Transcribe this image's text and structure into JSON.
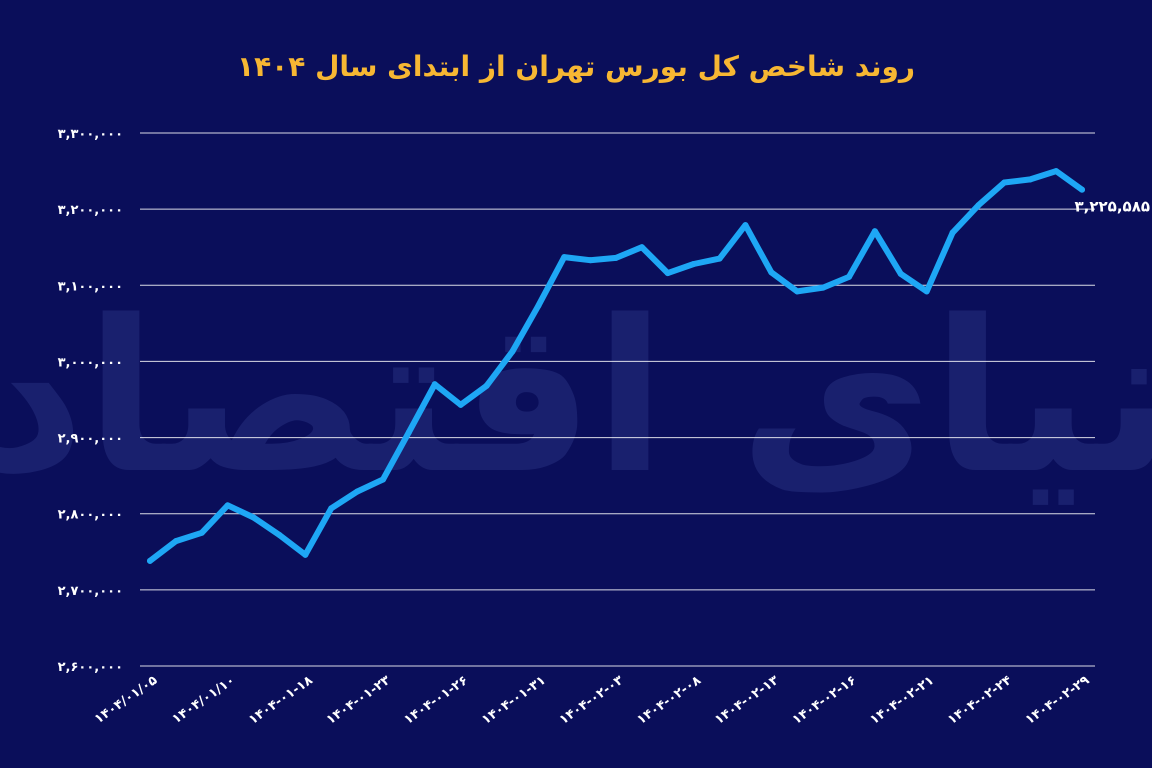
{
  "chart_data": {
    "type": "line",
    "title": "روند شاخص کل بورس تهران از ابتدای سال ۱۴۰۴",
    "xlabel": "",
    "ylabel": "",
    "ylim": [
      2600000,
      3300000
    ],
    "yticks": [
      {
        "value": 3300000,
        "label": "۳,۳۰۰,۰۰۰"
      },
      {
        "value": 3200000,
        "label": "۳,۲۰۰,۰۰۰"
      },
      {
        "value": 3100000,
        "label": "۳,۱۰۰,۰۰۰"
      },
      {
        "value": 3000000,
        "label": "۳,۰۰۰,۰۰۰"
      },
      {
        "value": 2900000,
        "label": "۲,۹۰۰,۰۰۰"
      },
      {
        "value": 2800000,
        "label": "۲,۸۰۰,۰۰۰"
      },
      {
        "value": 2700000,
        "label": "۲,۷۰۰,۰۰۰"
      },
      {
        "value": 2600000,
        "label": "۲,۶۰۰,۰۰۰"
      }
    ],
    "xtick_labels": [
      {
        "index": 0,
        "label": "۱۴۰۴/۰۱/۰۵"
      },
      {
        "index": 3,
        "label": "۱۴۰۴/۰۱/۱۰"
      },
      {
        "index": 6,
        "label": "۱۴۰۴-۰۱-۱۸"
      },
      {
        "index": 9,
        "label": "۱۴۰۴-۰۱-۲۳"
      },
      {
        "index": 12,
        "label": "۱۴۰۴-۰۱-۲۶"
      },
      {
        "index": 15,
        "label": "۱۴۰۴-۰۱-۳۱"
      },
      {
        "index": 18,
        "label": "۱۴۰۴-۰۲-۰۳"
      },
      {
        "index": 21,
        "label": "۱۴۰۴-۰۲-۰۸"
      },
      {
        "index": 24,
        "label": "۱۴۰۴-۰۲-۱۳"
      },
      {
        "index": 27,
        "label": "۱۴۰۴-۰۲-۱۶"
      },
      {
        "index": 30,
        "label": "۱۴۰۴-۰۲-۲۱"
      },
      {
        "index": 33,
        "label": "۱۴۰۴-۰۲-۲۴"
      },
      {
        "index": 36,
        "label": "۱۴۰۴-۰۲-۲۹"
      }
    ],
    "series": [
      {
        "values": [
          2738000,
          2764000,
          2775000,
          2811000,
          2795000,
          2772000,
          2746000,
          2807000,
          2829000,
          2845000,
          2907000,
          2970000,
          2943000,
          2968000,
          3013000,
          3073000,
          3137000,
          3133000,
          3136000,
          3150000,
          3116000,
          3128000,
          3135000,
          3179000,
          3117000,
          3092000,
          3097000,
          3111000,
          3171000,
          3115000,
          3092000,
          3169000,
          3205000,
          3235000,
          3239000,
          3250000,
          3225585
        ],
        "color": "#1ea7f5",
        "end_label": "۳,۲۲۵,۵۸۵"
      }
    ],
    "grid": true,
    "legend": "none",
    "colors": {
      "background": "#0a0e5a",
      "title": "#f7b733",
      "line": "#1ea7f5",
      "grid": "#ffffff"
    },
    "watermark": "دنیای اقتصاد"
  }
}
